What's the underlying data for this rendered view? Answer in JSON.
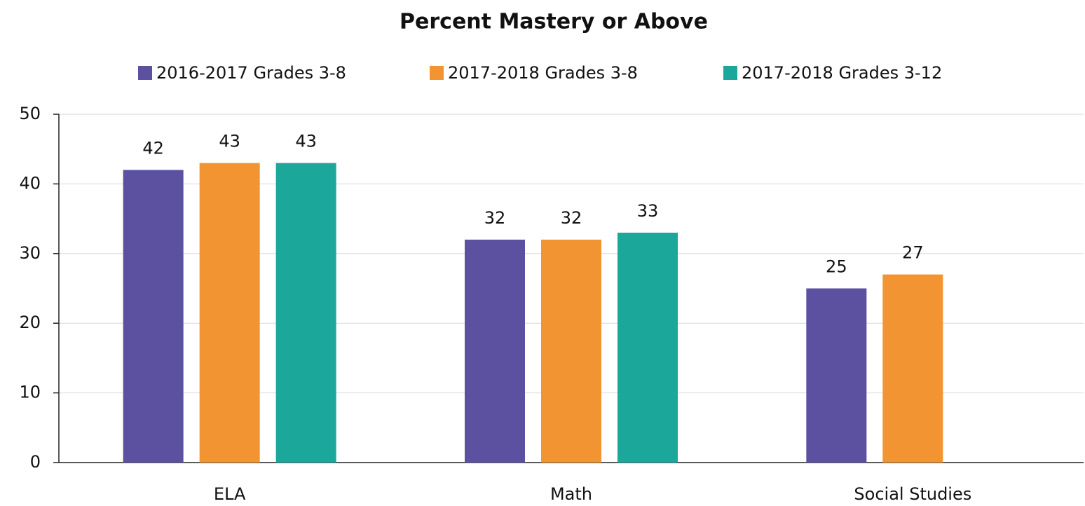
{
  "chart_data": {
    "type": "bar",
    "title": "Percent Mastery or Above",
    "categories": [
      "ELA",
      "Math",
      "Social Studies"
    ],
    "series": [
      {
        "name": "2016-2017 Grades 3-8",
        "color": "#5b51a0",
        "values": [
          42,
          32,
          25
        ]
      },
      {
        "name": "2017-2018 Grades 3-8",
        "color": "#f39433",
        "values": [
          43,
          32,
          27
        ]
      },
      {
        "name": "2017-2018 Grades 3-12",
        "color": "#1ba89b",
        "values": [
          43,
          33,
          null
        ]
      }
    ],
    "ylim": [
      0,
      50
    ],
    "yticks": [
      0,
      10,
      20,
      30,
      40,
      50
    ],
    "grid": true,
    "legend": "top"
  }
}
